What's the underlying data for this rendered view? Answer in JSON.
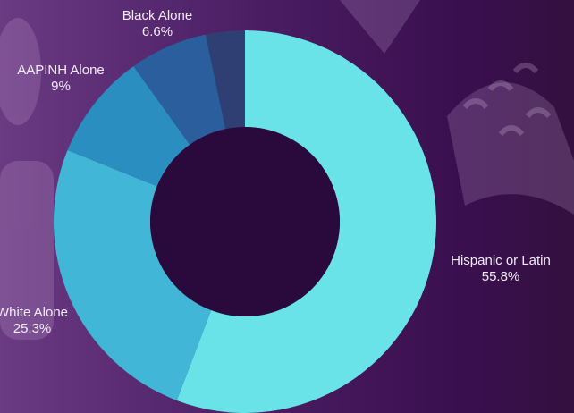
{
  "chart_data": {
    "type": "pie",
    "donut": true,
    "title": "",
    "slices": [
      {
        "label": "Hispanic or Latin",
        "value": 55.8,
        "display": "55.8%",
        "color": "#6ae3e8"
      },
      {
        "label": "White Alone",
        "value": 25.3,
        "display": "25.3%",
        "color": "#41b6d6"
      },
      {
        "label": "AAPINH Alone",
        "value": 9,
        "display": "9%",
        "color": "#2a8fc0"
      },
      {
        "label": "Black Alone",
        "value": 6.6,
        "display": "6.6%",
        "color": "#2b5e9d"
      },
      {
        "label": "",
        "value": 3.3,
        "display": "",
        "color": "#2f3f73"
      }
    ]
  },
  "colors": {
    "background": "#3a0f4f",
    "hole": "#2a0a3d",
    "label_text": "#f3ecf8"
  }
}
